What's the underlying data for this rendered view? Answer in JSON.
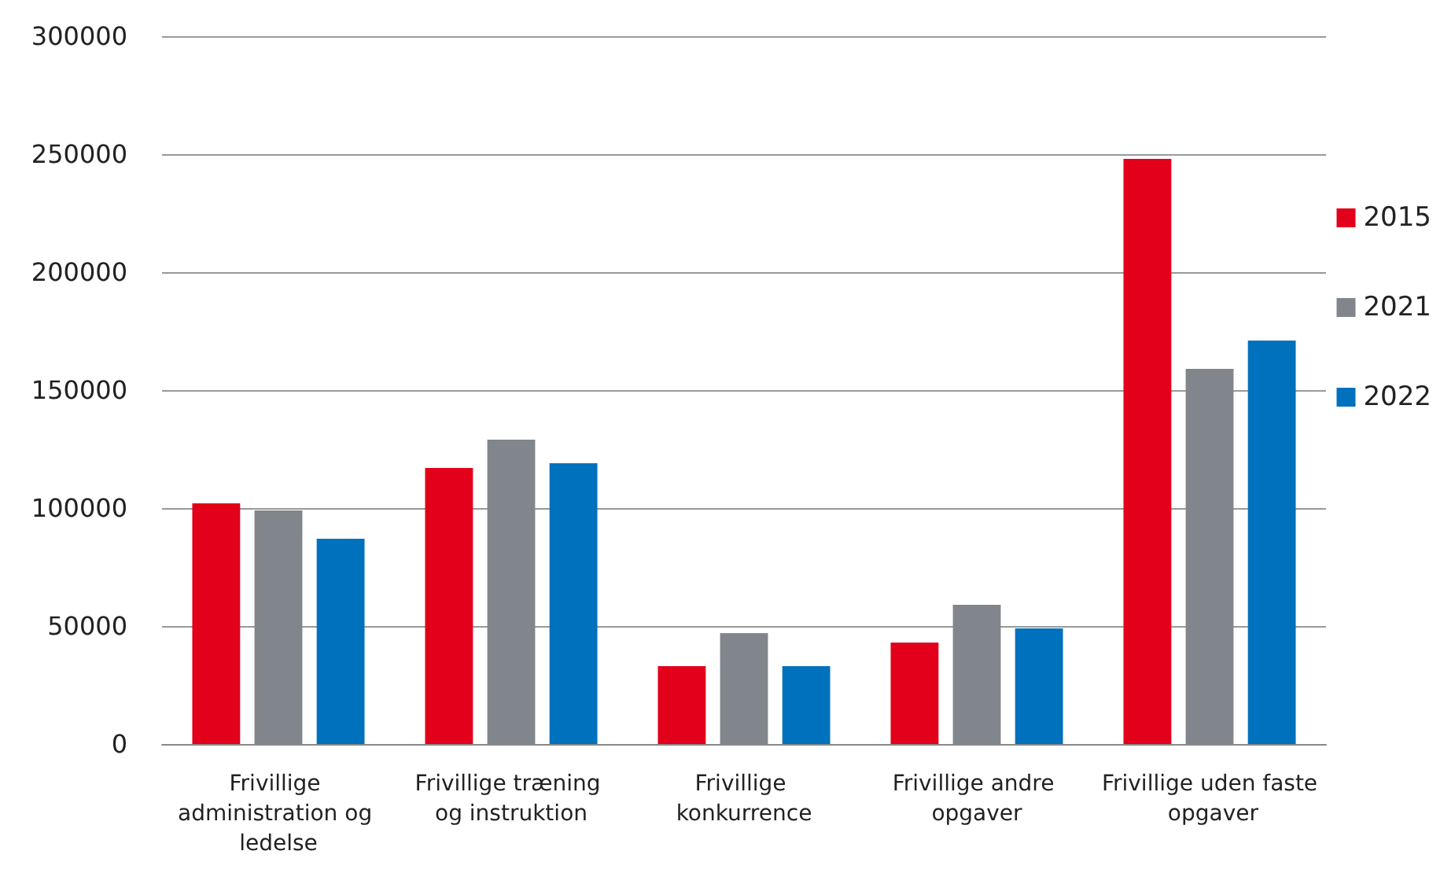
{
  "chart_data": {
    "type": "bar",
    "categories": [
      "Frivillige administration og ledelse",
      "Frivillige træning og instruktion",
      "Frivillige konkurrence",
      "Frivillige andre opgaver",
      "Frivillige uden faste opgaver"
    ],
    "series": [
      {
        "name": "2015",
        "color": "#e2001a",
        "values": [
          102000,
          117000,
          33000,
          43000,
          248000
        ]
      },
      {
        "name": "2021",
        "color": "#80868b",
        "values": [
          99000,
          129000,
          47000,
          59000,
          159000
        ]
      },
      {
        "name": "2022",
        "color": "#0071bc",
        "values": [
          87000,
          119000,
          33000,
          49000,
          171000
        ]
      }
    ],
    "ylim": [
      0,
      300000
    ],
    "yticks": [
      0,
      50000,
      100000,
      150000,
      200000,
      250000,
      300000
    ],
    "grid": "y",
    "legend": "right"
  }
}
